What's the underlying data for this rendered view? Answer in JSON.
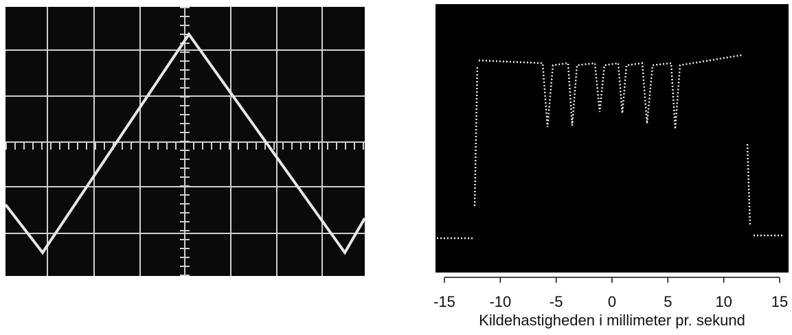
{
  "spectrum_axis": {
    "xlabel": "Kildehastigheden i millimeter pr. sekund",
    "xlim": [
      -15.8,
      15.8
    ],
    "xticks": [
      -15,
      -10,
      -5,
      0,
      5,
      10,
      15
    ]
  }
}
